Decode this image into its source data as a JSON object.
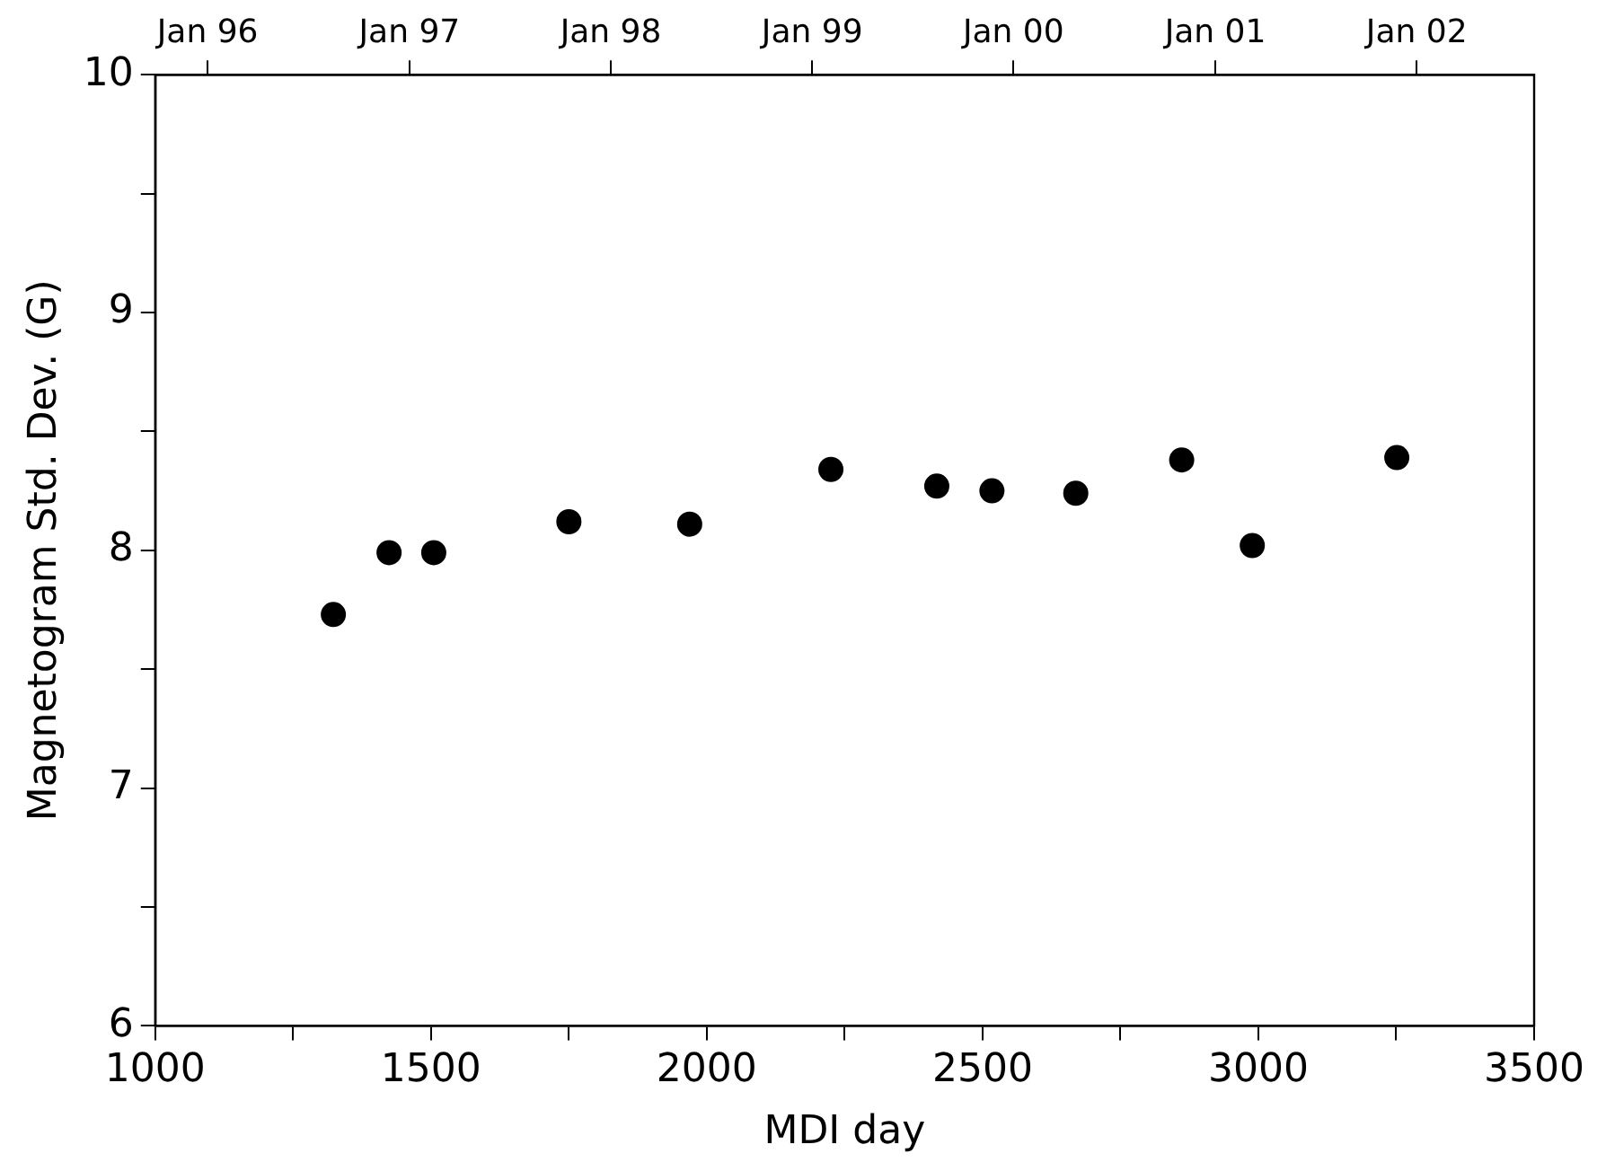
{
  "chart_data": {
    "type": "scatter",
    "xlabel": "MDI day",
    "ylabel": "Magnetogram Std. Dev. (G)",
    "x": [
      1323,
      1424,
      1505,
      1750,
      1969,
      2225,
      2417,
      2517,
      2669,
      2861,
      2989,
      3251
    ],
    "series": [
      {
        "color": "#000000",
        "values": [
          7.73,
          7.99,
          7.99,
          8.12,
          8.11,
          8.34,
          8.27,
          8.25,
          8.24,
          8.38,
          8.02,
          8.39
        ]
      }
    ],
    "xlim": [
      1000,
      3500
    ],
    "xticks": [
      1000,
      {
        "value": 1250,
        "label": null
      },
      1500,
      {
        "value": 1750,
        "label": null
      },
      2000,
      {
        "value": 2250,
        "label": null
      },
      2500,
      {
        "value": 2750,
        "label": null
      },
      3000,
      {
        "value": 3250,
        "label": null
      },
      3500
    ],
    "x2lim": [
      "1995-09-28",
      "2002-08-02"
    ],
    "x2ticks": [
      {
        "value": "1996-01-01",
        "label": "Jan 96"
      },
      {
        "value": "1997-01-01",
        "label": "Jan 97"
      },
      {
        "value": "1998-01-01",
        "label": "Jan 98"
      },
      {
        "value": "1999-01-01",
        "label": "Jan 99"
      },
      {
        "value": "2000-01-01",
        "label": "Jan 00"
      },
      {
        "value": "2001-01-01",
        "label": "Jan 01"
      },
      {
        "value": "2002-01-01",
        "label": "Jan 02"
      }
    ],
    "ylim": [
      6,
      10
    ],
    "yticks": [
      6,
      {
        "value": 6.5,
        "label": null
      },
      7,
      {
        "value": 7.5,
        "label": null
      },
      8,
      {
        "value": 8.5,
        "label": null
      },
      9,
      {
        "value": 9.5,
        "label": null
      },
      10
    ],
    "marker": "circle",
    "grid": false,
    "legend": false
  }
}
